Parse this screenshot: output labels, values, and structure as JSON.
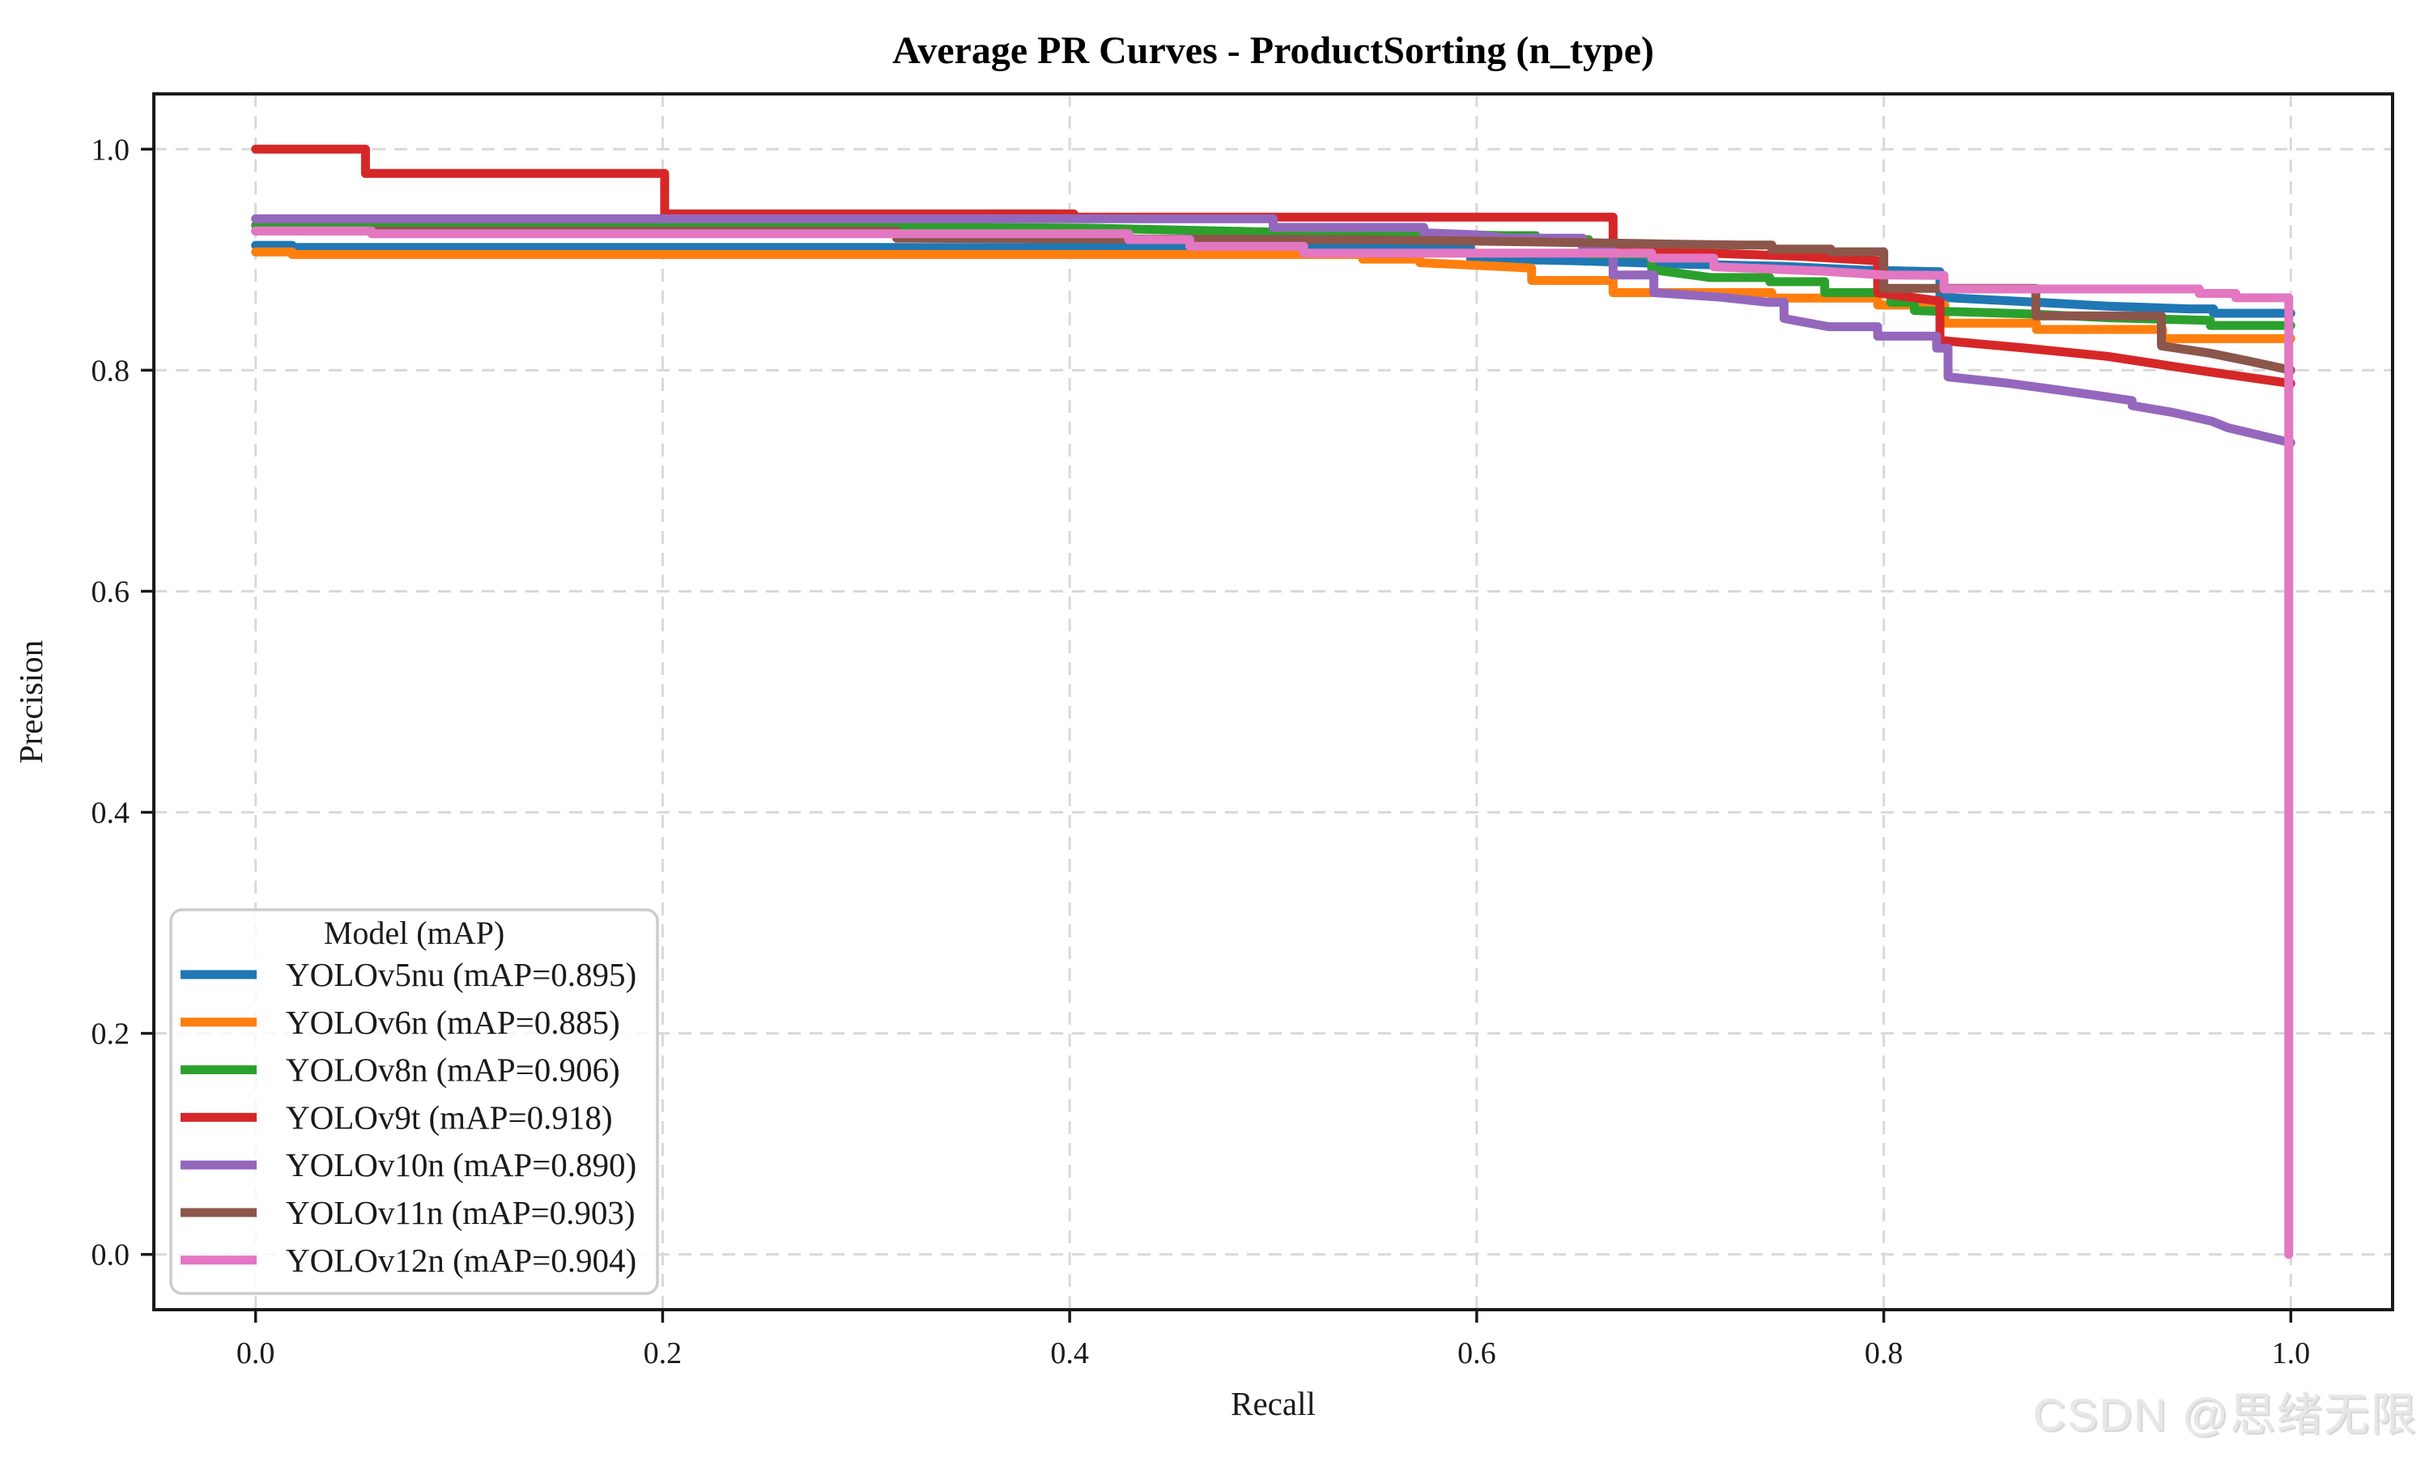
{
  "page": {
    "watermark": "CSDN @思绪无限"
  },
  "chart_data": {
    "type": "line",
    "subtype": "precision-recall-step-curves",
    "title": "Average PR Curves - ProductSorting (n_type)",
    "xlabel": "Recall",
    "ylabel": "Precision",
    "xlim": [
      -0.05,
      1.05
    ],
    "ylim": [
      -0.05,
      1.05
    ],
    "xticks": [
      0.0,
      0.2,
      0.4,
      0.6,
      0.8,
      1.0
    ],
    "yticks": [
      0.0,
      0.2,
      0.4,
      0.6,
      0.8,
      1.0
    ],
    "grid": true,
    "grid_style": {
      "color": "#d9d9d9",
      "dash": "16 11",
      "width": 3
    },
    "axis_color": "#1a1a1a",
    "legend": {
      "title": "Model (mAP)",
      "position": "lower left"
    },
    "series": [
      {
        "label": "YOLOv5nu (mAP=0.895)",
        "model": "YOLOv5nu",
        "mAP": 0.895,
        "color": "#1f77b4",
        "points": [
          [
            0,
            0.913
          ],
          [
            0.018,
            0.913
          ],
          [
            0.018,
            0.911
          ],
          [
            0.597,
            0.911
          ],
          [
            0.597,
            0.901
          ],
          [
            0.65,
            0.899
          ],
          [
            0.7,
            0.896
          ],
          [
            0.75,
            0.894
          ],
          [
            0.79,
            0.8905
          ],
          [
            0.8276,
            0.889
          ],
          [
            0.8276,
            0.866
          ],
          [
            0.87,
            0.862
          ],
          [
            0.91,
            0.858
          ],
          [
            0.95,
            0.8555
          ],
          [
            0.962,
            0.8555
          ],
          [
            0.962,
            0.8515
          ],
          [
            1.0,
            0.8515
          ]
        ]
      },
      {
        "label": "YOLOv6n (mAP=0.885)",
        "model": "YOLOv6n",
        "mAP": 0.885,
        "color": "#ff7f0e",
        "points": [
          [
            0,
            0.907
          ],
          [
            0.018,
            0.907
          ],
          [
            0.018,
            0.9047
          ],
          [
            0.544,
            0.9047
          ],
          [
            0.544,
            0.9005
          ],
          [
            0.572,
            0.9005
          ],
          [
            0.572,
            0.8973
          ],
          [
            0.61,
            0.894
          ],
          [
            0.627,
            0.8924
          ],
          [
            0.627,
            0.8812
          ],
          [
            0.667,
            0.8812
          ],
          [
            0.667,
            0.8702
          ],
          [
            0.745,
            0.8702
          ],
          [
            0.745,
            0.8653
          ],
          [
            0.797,
            0.8653
          ],
          [
            0.797,
            0.8589
          ],
          [
            0.83,
            0.8589
          ],
          [
            0.83,
            0.8425
          ],
          [
            0.875,
            0.8425
          ],
          [
            0.875,
            0.8369
          ],
          [
            0.937,
            0.8369
          ],
          [
            0.937,
            0.8285
          ],
          [
            1.0,
            0.8285
          ]
        ]
      },
      {
        "label": "YOLOv8n (mAP=0.906)",
        "model": "YOLOv8n",
        "mAP": 0.906,
        "color": "#2ca02c",
        "points": [
          [
            0,
            0.931
          ],
          [
            0.3,
            0.931
          ],
          [
            0.32,
            0.9295
          ],
          [
            0.41,
            0.9285
          ],
          [
            0.5,
            0.925
          ],
          [
            0.555,
            0.9235
          ],
          [
            0.615,
            0.9218
          ],
          [
            0.629,
            0.9218
          ],
          [
            0.629,
            0.9182
          ],
          [
            0.655,
            0.9182
          ],
          [
            0.655,
            0.9051
          ],
          [
            0.686,
            0.9051
          ],
          [
            0.686,
            0.8911
          ],
          [
            0.715,
            0.8838
          ],
          [
            0.744,
            0.8838
          ],
          [
            0.744,
            0.8801
          ],
          [
            0.771,
            0.8801
          ],
          [
            0.771,
            0.8702
          ],
          [
            0.8035,
            0.8702
          ],
          [
            0.8035,
            0.8615
          ],
          [
            0.815,
            0.8615
          ],
          [
            0.815,
            0.854
          ],
          [
            0.87,
            0.851
          ],
          [
            0.91,
            0.8475
          ],
          [
            0.9605,
            0.845
          ],
          [
            0.9605,
            0.8405
          ],
          [
            1.0,
            0.8405
          ]
        ]
      },
      {
        "label": "YOLOv9t (mAP=0.918)",
        "model": "YOLOv9t",
        "mAP": 0.918,
        "color": "#d62728",
        "points": [
          [
            0,
            1.0
          ],
          [
            0.054,
            1.0
          ],
          [
            0.054,
            0.978
          ],
          [
            0.201,
            0.978
          ],
          [
            0.201,
            0.9415
          ],
          [
            0.402,
            0.9415
          ],
          [
            0.402,
            0.9385
          ],
          [
            0.667,
            0.9385
          ],
          [
            0.667,
            0.907
          ],
          [
            0.72,
            0.9055
          ],
          [
            0.76,
            0.903
          ],
          [
            0.797,
            0.899
          ],
          [
            0.797,
            0.87
          ],
          [
            0.8276,
            0.8625
          ],
          [
            0.8276,
            0.827
          ],
          [
            0.87,
            0.82
          ],
          [
            0.91,
            0.8125
          ],
          [
            0.96,
            0.7985
          ],
          [
            1.0,
            0.788
          ]
        ]
      },
      {
        "label": "YOLOv10n (mAP=0.890)",
        "model": "YOLOv10n",
        "mAP": 0.89,
        "color": "#9467bd",
        "points": [
          [
            0,
            0.937
          ],
          [
            0.5,
            0.937
          ],
          [
            0.5,
            0.9292
          ],
          [
            0.574,
            0.9292
          ],
          [
            0.574,
            0.9243
          ],
          [
            0.6,
            0.9225
          ],
          [
            0.615,
            0.9194
          ],
          [
            0.652,
            0.9194
          ],
          [
            0.652,
            0.9095
          ],
          [
            0.667,
            0.9095
          ],
          [
            0.667,
            0.8862
          ],
          [
            0.687,
            0.8862
          ],
          [
            0.687,
            0.8702
          ],
          [
            0.72,
            0.866
          ],
          [
            0.743,
            0.8615
          ],
          [
            0.751,
            0.8615
          ],
          [
            0.751,
            0.8468
          ],
          [
            0.773,
            0.8394
          ],
          [
            0.797,
            0.8394
          ],
          [
            0.797,
            0.8308
          ],
          [
            0.826,
            0.8308
          ],
          [
            0.826,
            0.82
          ],
          [
            0.8316,
            0.82
          ],
          [
            0.8316,
            0.794
          ],
          [
            0.86,
            0.7885
          ],
          [
            0.89,
            0.781
          ],
          [
            0.909,
            0.776
          ],
          [
            0.922,
            0.7725
          ],
          [
            0.922,
            0.768
          ],
          [
            0.9415,
            0.762
          ],
          [
            0.961,
            0.754
          ],
          [
            0.969,
            0.748
          ],
          [
            0.985,
            0.741
          ],
          [
            1.0,
            0.7345
          ]
        ]
      },
      {
        "label": "YOLOv11n (mAP=0.903)",
        "model": "YOLOv11n",
        "mAP": 0.903,
        "color": "#8c564b",
        "points": [
          [
            0,
            0.926
          ],
          [
            0.315,
            0.926
          ],
          [
            0.315,
            0.9194
          ],
          [
            0.55,
            0.918
          ],
          [
            0.611,
            0.9166
          ],
          [
            0.7,
            0.914
          ],
          [
            0.73,
            0.9133
          ],
          [
            0.745,
            0.9133
          ],
          [
            0.745,
            0.9095
          ],
          [
            0.774,
            0.9095
          ],
          [
            0.774,
            0.9071
          ],
          [
            0.8,
            0.9071
          ],
          [
            0.8,
            0.874
          ],
          [
            0.8747,
            0.874
          ],
          [
            0.8747,
            0.8491
          ],
          [
            0.9364,
            0.8491
          ],
          [
            0.9364,
            0.822
          ],
          [
            0.96,
            0.8155
          ],
          [
            0.98,
            0.808
          ],
          [
            1.0,
            0.8
          ]
        ]
      },
      {
        "label": "YOLOv12n (mAP=0.904)",
        "model": "YOLOv12n",
        "mAP": 0.904,
        "color": "#e377c2",
        "points": [
          [
            0,
            0.926
          ],
          [
            0.057,
            0.926
          ],
          [
            0.057,
            0.9235
          ],
          [
            0.429,
            0.9235
          ],
          [
            0.429,
            0.9182
          ],
          [
            0.459,
            0.9182
          ],
          [
            0.459,
            0.912
          ],
          [
            0.515,
            0.912
          ],
          [
            0.515,
            0.9059
          ],
          [
            0.686,
            0.9059
          ],
          [
            0.686,
            0.9014
          ],
          [
            0.7165,
            0.9014
          ],
          [
            0.7165,
            0.8936
          ],
          [
            0.77,
            0.8896
          ],
          [
            0.8,
            0.8862
          ],
          [
            0.8296,
            0.8857
          ],
          [
            0.8296,
            0.8735
          ],
          [
            0.955,
            0.8735
          ],
          [
            0.955,
            0.8695
          ],
          [
            0.973,
            0.8695
          ],
          [
            0.973,
            0.8655
          ],
          [
            0.999,
            0.8655
          ],
          [
            0.999,
            0.0
          ]
        ]
      }
    ]
  }
}
